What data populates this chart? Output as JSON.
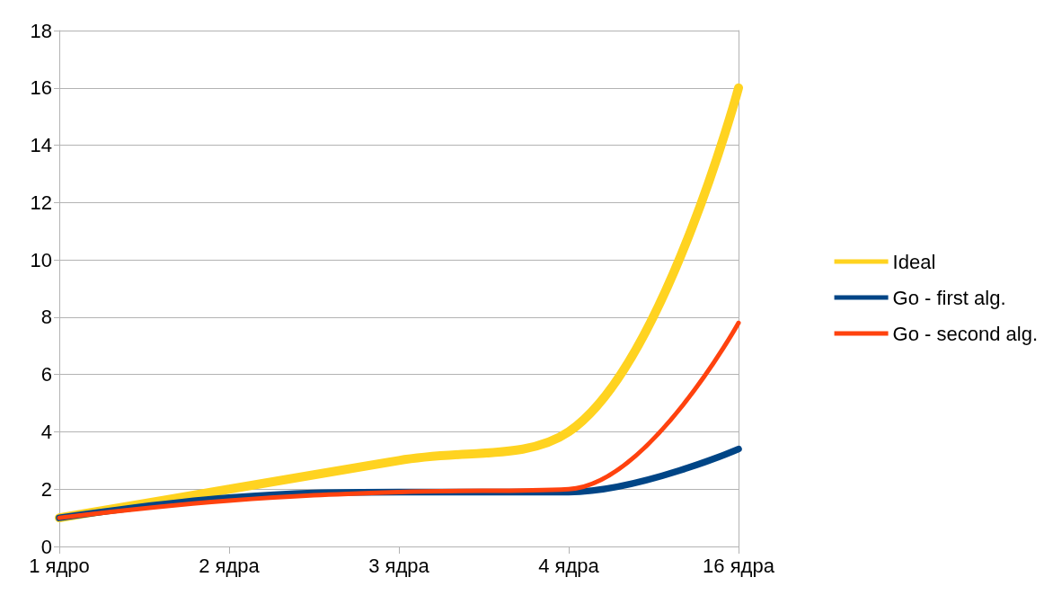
{
  "chart_data": {
    "type": "line",
    "categories": [
      "1 ядро",
      "2 ядра",
      "3 ядра",
      "4 ядра",
      "16 ядра"
    ],
    "series": [
      {
        "name": "Ideal",
        "color": "#ffd320",
        "values": [
          1,
          2,
          3,
          4,
          16
        ]
      },
      {
        "name": "Go - first alg.",
        "color": "#004586",
        "values": [
          1,
          1.7,
          1.9,
          1.9,
          3.4
        ]
      },
      {
        "name": "Go - second alg.",
        "color": "#ff420e",
        "values": [
          1,
          1.6,
          1.9,
          2.0,
          7.8
        ]
      }
    ],
    "ylim": [
      0,
      18
    ],
    "yticks": [
      0,
      2,
      4,
      6,
      8,
      10,
      12,
      14,
      16,
      18
    ],
    "grid": "y",
    "legend": "right",
    "marker": "none"
  }
}
